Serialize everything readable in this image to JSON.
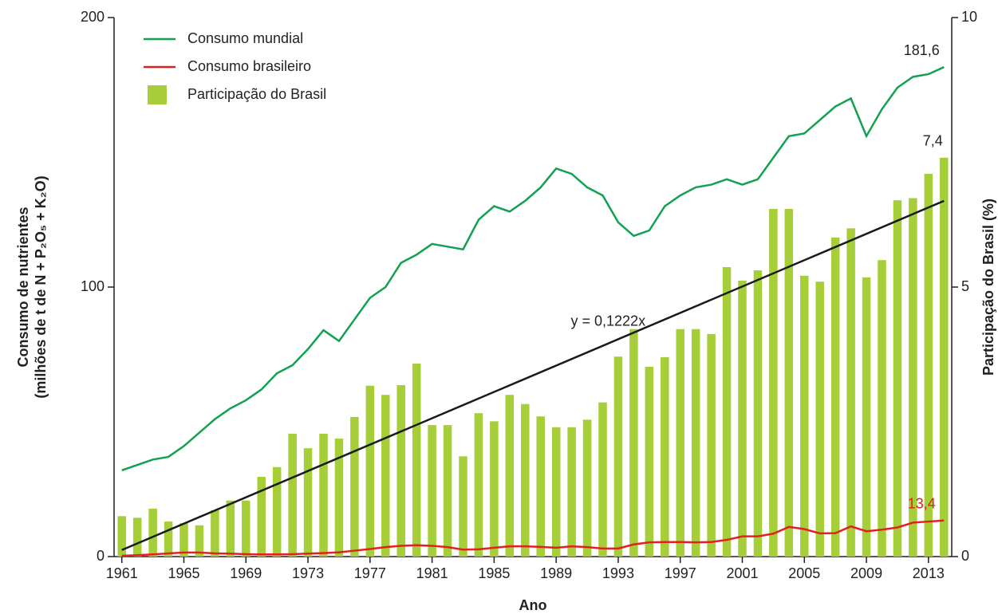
{
  "chart_data": {
    "type": "bar-line",
    "x_label": "Ano",
    "y_label": [
      "Consumo de nutrientes",
      "(milhões de t de N + P₂O₅ + K₂O)"
    ],
    "y2_label": "Participação do Brasil (%)",
    "x": [
      1961,
      1962,
      1963,
      1964,
      1965,
      1966,
      1967,
      1968,
      1969,
      1970,
      1971,
      1972,
      1973,
      1974,
      1975,
      1976,
      1977,
      1978,
      1979,
      1980,
      1981,
      1982,
      1983,
      1984,
      1985,
      1986,
      1987,
      1988,
      1989,
      1990,
      1991,
      1992,
      1993,
      1994,
      1995,
      1996,
      1997,
      1998,
      1999,
      2000,
      2001,
      2002,
      2003,
      2004,
      2005,
      2006,
      2007,
      2008,
      2009,
      2010,
      2011,
      2012,
      2013,
      2014
    ],
    "xlim": [
      1960.5,
      2014.5
    ],
    "xticks": [
      1961,
      1965,
      1969,
      1973,
      1977,
      1981,
      1985,
      1989,
      1993,
      1997,
      2001,
      2005,
      2009,
      2013
    ],
    "ylim": [
      0,
      200
    ],
    "yticks": [
      0,
      100,
      200
    ],
    "y2lim": [
      0,
      10
    ],
    "y2ticks": [
      0,
      5,
      10
    ],
    "legend": "top-left",
    "series": [
      {
        "name": "Consumo mundial",
        "type": "line",
        "color": "#12a150",
        "values": [
          32,
          34,
          36,
          37,
          41,
          46,
          51,
          55,
          58,
          62,
          68,
          71,
          77,
          84,
          80,
          88,
          96,
          100,
          109,
          112,
          116,
          115,
          114,
          125,
          130,
          128,
          132,
          137,
          144,
          142,
          137,
          134,
          124,
          119,
          121,
          130,
          134,
          137,
          138,
          140,
          138,
          140,
          148,
          156,
          157,
          162,
          167,
          170,
          156,
          166,
          174,
          178,
          179,
          181.6
        ],
        "value_labels": [
          null,
          null,
          null,
          null,
          null,
          null,
          null,
          null,
          null,
          null,
          null,
          null,
          null,
          null,
          null,
          null,
          null,
          null,
          null,
          null,
          null,
          null,
          null,
          null,
          null,
          null,
          null,
          null,
          null,
          null,
          null,
          null,
          null,
          null,
          null,
          null,
          null,
          null,
          null,
          null,
          null,
          null,
          null,
          null,
          null,
          null,
          null,
          null,
          null,
          null,
          null,
          null,
          null,
          "181,6"
        ]
      },
      {
        "name": "Consumo brasileiro",
        "type": "line",
        "color": "#e3201b",
        "values": [
          0.3,
          0.5,
          0.8,
          1.2,
          1.5,
          1.5,
          1.2,
          1.1,
          0.9,
          0.8,
          0.8,
          0.9,
          1.1,
          1.3,
          1.6,
          2.2,
          2.8,
          3.5,
          4.0,
          4.2,
          4.0,
          3.5,
          2.6,
          2.7,
          3.3,
          3.8,
          3.8,
          3.6,
          3.3,
          3.8,
          3.5,
          3.0,
          3.0,
          4.5,
          5.3,
          5.4,
          5.4,
          5.3,
          5.4,
          6.2,
          7.5,
          7.5,
          8.5,
          11.0,
          10.2,
          8.6,
          8.7,
          11.2,
          9.4,
          10.0,
          10.8,
          12.6,
          13.0,
          13.4
        ],
        "value_labels": [
          null,
          null,
          null,
          null,
          null,
          null,
          null,
          null,
          null,
          null,
          null,
          null,
          null,
          null,
          null,
          null,
          null,
          null,
          null,
          null,
          null,
          null,
          null,
          null,
          null,
          null,
          null,
          null,
          null,
          null,
          null,
          null,
          null,
          null,
          null,
          null,
          null,
          null,
          null,
          null,
          null,
          null,
          null,
          null,
          null,
          null,
          null,
          null,
          null,
          null,
          null,
          null,
          null,
          "13,4"
        ]
      },
      {
        "name": "Participação do Brasil",
        "type": "bar",
        "axis": "y2",
        "color": "#a6ce39",
        "values": [
          0.75,
          0.72,
          0.89,
          0.65,
          0.62,
          0.58,
          0.86,
          1.04,
          1.04,
          1.48,
          1.66,
          2.28,
          2.01,
          2.28,
          2.19,
          2.59,
          3.17,
          3.0,
          3.18,
          3.58,
          2.44,
          2.44,
          1.86,
          2.66,
          2.51,
          3.0,
          2.83,
          2.6,
          2.4,
          2.4,
          2.54,
          2.86,
          3.71,
          4.22,
          3.52,
          3.7,
          4.22,
          4.22,
          4.13,
          5.37,
          5.12,
          5.31,
          6.45,
          6.45,
          5.21,
          5.1,
          5.92,
          6.09,
          5.18,
          5.5,
          6.61,
          6.65,
          7.1,
          7.4
        ],
        "value_labels": [
          null,
          null,
          null,
          null,
          null,
          null,
          null,
          null,
          null,
          null,
          null,
          null,
          null,
          null,
          null,
          null,
          null,
          null,
          null,
          null,
          null,
          null,
          null,
          null,
          null,
          null,
          null,
          null,
          null,
          null,
          null,
          null,
          null,
          null,
          null,
          null,
          null,
          null,
          null,
          null,
          null,
          null,
          null,
          null,
          null,
          null,
          null,
          null,
          null,
          null,
          null,
          null,
          null,
          "7,4"
        ]
      }
    ],
    "trendline": {
      "label": "y = 0,1222x",
      "slope": 0.1222,
      "axis": "y2",
      "color": "#1a1a1a"
    }
  }
}
